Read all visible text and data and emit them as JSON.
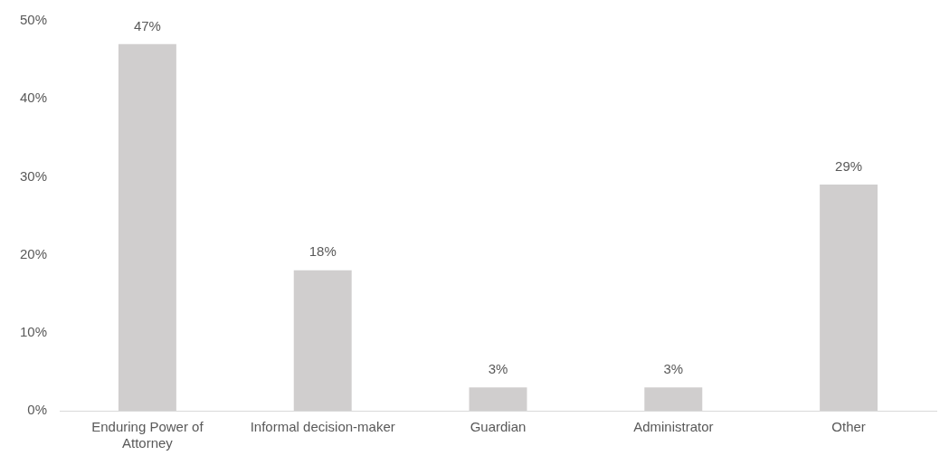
{
  "chart_data": {
    "type": "bar",
    "categories": [
      "Enduring Power of Attorney",
      "Informal decision-maker",
      "Guardian",
      "Administrator",
      "Other"
    ],
    "values": [
      47,
      18,
      3,
      3,
      29
    ],
    "value_labels": [
      "47%",
      "18%",
      "3%",
      "3%",
      "29%"
    ],
    "color": "#d0cece",
    "ylim": [
      0,
      50
    ],
    "yticks": [
      {
        "value": 0,
        "label": "0%"
      },
      {
        "value": 10,
        "label": "10%"
      },
      {
        "value": 20,
        "label": "20%"
      },
      {
        "value": 30,
        "label": "30%"
      },
      {
        "value": 40,
        "label": "40%"
      },
      {
        "value": 50,
        "label": "50%"
      }
    ],
    "grid": false,
    "legend": false
  }
}
